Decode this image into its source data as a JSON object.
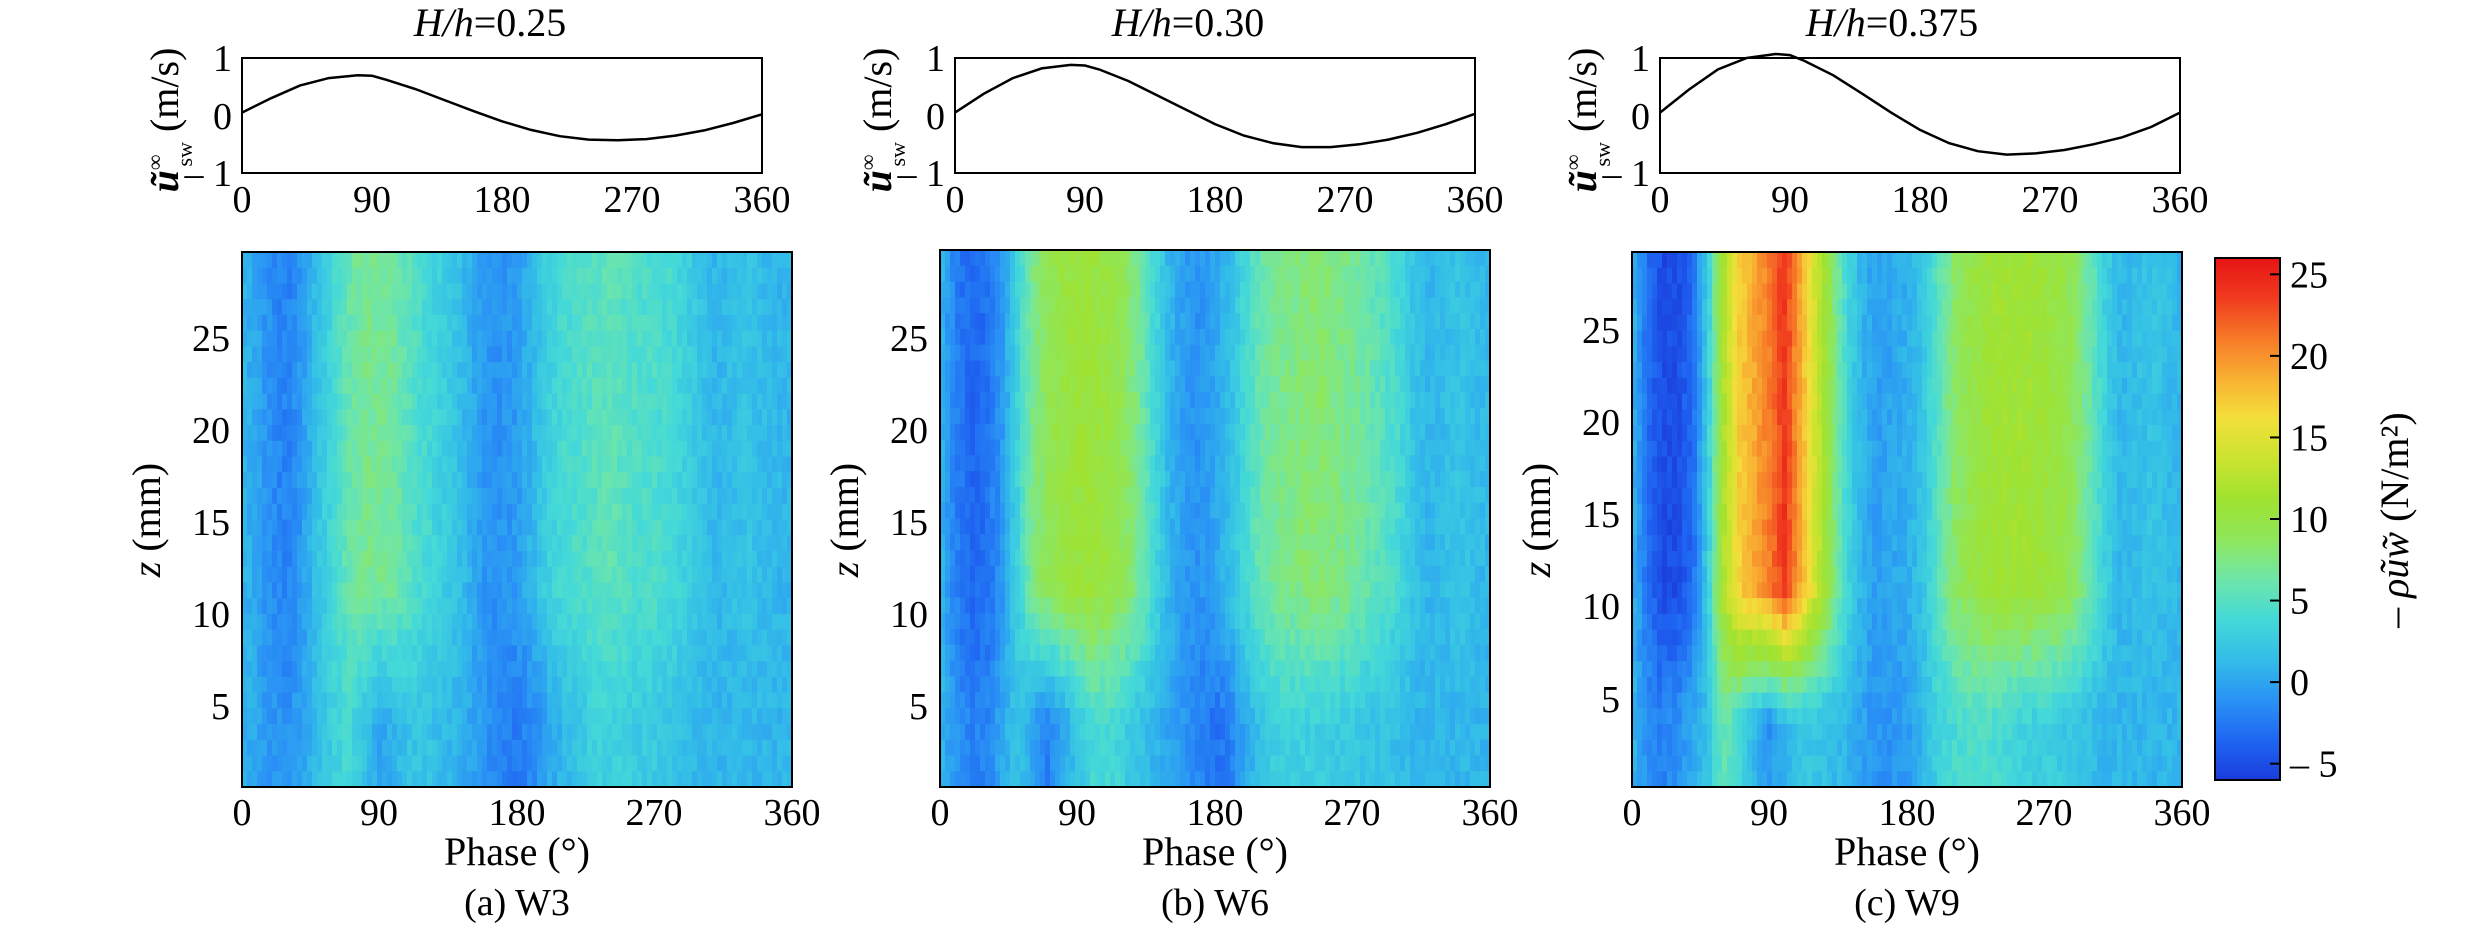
{
  "chart_data": [
    {
      "panel": "a",
      "caption": "(a) W3",
      "title_var": "H/h",
      "title_eq": "=0.25",
      "top": {
        "type": "line",
        "ylabel_main": "ũ",
        "ylabel_sup": "∞",
        "ylabel_sub": "sw",
        "ylabel_unit": "(m/s)",
        "xlim": [
          0,
          360
        ],
        "ylim": [
          -1,
          1
        ],
        "xticks": [
          "0",
          "90",
          "180",
          "270",
          "360"
        ],
        "yticks": [
          "1",
          "0",
          "– 1"
        ],
        "x": [
          0,
          20,
          40,
          60,
          80,
          90,
          100,
          120,
          140,
          160,
          180,
          200,
          220,
          240,
          260,
          280,
          300,
          320,
          340,
          360
        ],
        "y": [
          0.05,
          0.3,
          0.52,
          0.65,
          0.7,
          0.69,
          0.62,
          0.46,
          0.27,
          0.08,
          -0.1,
          -0.25,
          -0.36,
          -0.42,
          -0.43,
          -0.41,
          -0.35,
          -0.26,
          -0.13,
          0.02
        ]
      },
      "bottom": {
        "type": "heatmap",
        "xlabel": "Phase (°)",
        "ylabel_var": "z",
        "ylabel_unit": "(mm)",
        "xlim": [
          0,
          360
        ],
        "ylim": [
          0.5,
          29.5
        ],
        "xticks": [
          "0",
          "90",
          "180",
          "270",
          "360"
        ],
        "yticks": [
          "5",
          "10",
          "15",
          "20",
          "25"
        ],
        "phase": [
          0,
          10,
          20,
          30,
          40,
          50,
          60,
          70,
          80,
          90,
          100,
          110,
          120,
          130,
          140,
          150,
          160,
          170,
          180,
          190,
          200,
          210,
          220,
          230,
          240,
          250,
          260,
          270,
          280,
          290,
          300,
          310,
          320,
          330,
          340,
          350,
          360
        ],
        "upper_profile": [
          1,
          0,
          -1.5,
          -2,
          -0.5,
          2,
          4,
          6,
          7,
          7,
          6.5,
          5,
          4,
          3,
          2,
          0.5,
          -1,
          -1,
          -0.5,
          1,
          3,
          4,
          4.5,
          5,
          5.5,
          5,
          4.5,
          4.5,
          4,
          3,
          2,
          1,
          1.5,
          2,
          1.5,
          1,
          1
        ],
        "lower_profile": [
          1,
          0,
          -1,
          -1,
          0,
          1.5,
          3,
          4,
          2,
          0,
          1,
          2,
          2,
          1.5,
          1,
          0,
          -1,
          -2,
          -2.5,
          -1.5,
          0,
          1,
          2,
          3,
          3,
          3,
          2.5,
          2.5,
          2,
          1.5,
          1,
          1,
          1,
          1,
          1,
          1,
          1
        ]
      }
    },
    {
      "panel": "b",
      "caption": "(b) W6",
      "title_var": "H/h",
      "title_eq": "=0.30",
      "top": {
        "type": "line",
        "ylabel_main": "ũ",
        "ylabel_sup": "∞",
        "ylabel_sub": "sw",
        "ylabel_unit": "(m/s)",
        "xlim": [
          0,
          360
        ],
        "ylim": [
          -1,
          1
        ],
        "xticks": [
          "0",
          "90",
          "180",
          "270",
          "360"
        ],
        "yticks": [
          "1",
          "0",
          "– 1"
        ],
        "x": [
          0,
          20,
          40,
          60,
          80,
          90,
          100,
          120,
          140,
          160,
          180,
          200,
          220,
          240,
          260,
          280,
          300,
          320,
          340,
          360
        ],
        "y": [
          0.05,
          0.38,
          0.65,
          0.82,
          0.88,
          0.87,
          0.8,
          0.6,
          0.35,
          0.1,
          -0.15,
          -0.35,
          -0.48,
          -0.55,
          -0.55,
          -0.5,
          -0.42,
          -0.3,
          -0.15,
          0.03
        ]
      },
      "bottom": {
        "type": "heatmap",
        "xlabel": "Phase (°)",
        "ylabel_var": "z",
        "ylabel_unit": "(mm)",
        "xlim": [
          0,
          360
        ],
        "ylim": [
          0.5,
          29.5
        ],
        "xticks": [
          "0",
          "90",
          "180",
          "270",
          "360"
        ],
        "yticks": [
          "5",
          "10",
          "15",
          "20",
          "25"
        ],
        "phase": [
          0,
          10,
          20,
          30,
          40,
          50,
          60,
          70,
          80,
          90,
          100,
          110,
          120,
          130,
          140,
          150,
          160,
          170,
          180,
          190,
          200,
          210,
          220,
          230,
          240,
          250,
          260,
          270,
          280,
          290,
          300,
          310,
          320,
          330,
          340,
          350,
          360
        ],
        "upper_profile": [
          1,
          -2,
          -3.5,
          -3,
          -1,
          3,
          7,
          9,
          10,
          10.5,
          10.5,
          10,
          9,
          7,
          4,
          1,
          -0.5,
          -1,
          0,
          1.5,
          4,
          6,
          7,
          7.5,
          8,
          8,
          7.5,
          7,
          6,
          5,
          4,
          2,
          1,
          1.5,
          2,
          1.5,
          1
        ],
        "lower_profile": [
          1,
          -1,
          -2,
          -2,
          0,
          2,
          0,
          -2,
          0,
          2,
          4,
          4,
          3,
          2,
          1,
          0,
          -1,
          -2,
          -3,
          -2,
          0,
          2,
          3,
          3,
          3,
          3,
          2.5,
          2.5,
          2,
          2,
          1.5,
          1,
          1,
          1,
          1,
          1,
          1
        ]
      }
    },
    {
      "panel": "c",
      "caption": "(c) W9",
      "title_var": "H/h",
      "title_eq": "=0.375",
      "top": {
        "type": "line",
        "ylabel_main": "ũ",
        "ylabel_sup": "∞",
        "ylabel_sub": "sw",
        "ylabel_unit": "(m/s)",
        "xlim": [
          0,
          360
        ],
        "ylim": [
          -1,
          1
        ],
        "xticks": [
          "0",
          "90",
          "180",
          "270",
          "360"
        ],
        "yticks": [
          "1",
          "0",
          "– 1"
        ],
        "x": [
          0,
          20,
          40,
          60,
          80,
          90,
          100,
          120,
          140,
          160,
          180,
          200,
          220,
          240,
          260,
          280,
          300,
          320,
          340,
          360
        ],
        "y": [
          0.05,
          0.45,
          0.8,
          1.0,
          1.07,
          1.05,
          0.95,
          0.7,
          0.38,
          0.05,
          -0.25,
          -0.48,
          -0.62,
          -0.68,
          -0.66,
          -0.6,
          -0.5,
          -0.38,
          -0.2,
          0.05
        ]
      },
      "bottom": {
        "type": "heatmap",
        "xlabel": "Phase (°)",
        "ylabel_var": "z",
        "ylabel_unit": "(mm)",
        "xlim": [
          0,
          360
        ],
        "ylim": [
          0.5,
          29.5
        ],
        "xticks": [
          "0",
          "90",
          "180",
          "270",
          "360"
        ],
        "yticks": [
          "5",
          "10",
          "15",
          "20",
          "25"
        ],
        "phase": [
          0,
          10,
          20,
          30,
          40,
          50,
          60,
          70,
          80,
          90,
          100,
          110,
          120,
          130,
          140,
          150,
          160,
          170,
          180,
          190,
          200,
          210,
          220,
          230,
          240,
          250,
          260,
          270,
          280,
          290,
          300,
          310,
          320,
          330,
          340,
          350,
          360
        ],
        "upper_profile": [
          1,
          -3,
          -5,
          -5,
          -3,
          3,
          12,
          17,
          19,
          21,
          24,
          19,
          14,
          9,
          4,
          1,
          -0.5,
          0,
          0.5,
          2,
          5,
          8,
          9.5,
          10.5,
          11,
          11,
          11,
          10.5,
          10,
          8.5,
          6,
          3,
          1,
          1.5,
          2,
          1.5,
          1
        ],
        "lower_profile": [
          1,
          -1,
          -2,
          -1,
          0,
          2,
          6,
          4,
          1,
          -1,
          1,
          2,
          2,
          1.5,
          1,
          0,
          -1,
          -1,
          -0.5,
          1,
          3,
          4,
          4.5,
          4.5,
          4,
          3.5,
          3,
          3,
          2.5,
          2,
          1.5,
          1,
          1,
          1,
          1,
          1,
          1
        ]
      }
    }
  ],
  "colorbar": {
    "label_main": "– ρũw̃",
    "label_unit": "(N/m²)",
    "vmin": -6,
    "vmax": 26,
    "ticks": [
      25,
      20,
      15,
      10,
      5,
      0,
      -5
    ],
    "tick_labels": [
      "25",
      "20",
      "15",
      "10",
      "5",
      "0",
      "– 5"
    ],
    "colors": [
      "#1a3cdc",
      "#1f66f2",
      "#2a93f5",
      "#33bde8",
      "#44d9d8",
      "#6fe6a8",
      "#8fe65a",
      "#a0e230",
      "#cbe32f",
      "#f3e03a",
      "#f8b032",
      "#f77a28",
      "#f03a1e",
      "#e61414"
    ]
  }
}
